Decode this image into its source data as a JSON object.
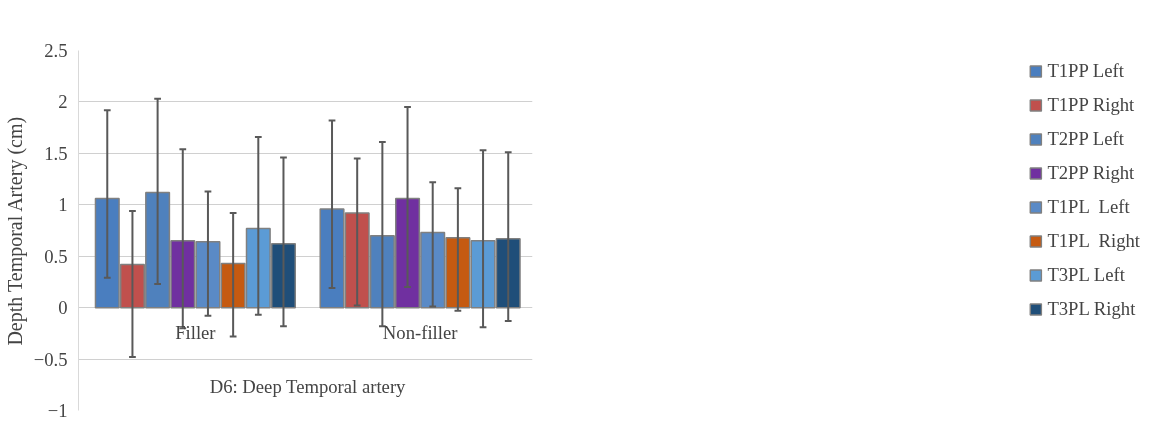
{
  "chart_data": {
    "type": "bar",
    "ylabel": "Depth Temporal Artery (cm)",
    "categories": [
      "Filler",
      "Non-filler"
    ],
    "ylim": [
      -1,
      2.5
    ],
    "yticks": [
      -1,
      -0.5,
      0,
      0.5,
      1,
      1.5,
      2,
      2.5
    ],
    "grid": "y",
    "legend": "right",
    "annotations": [
      "D6: Deep Temporal artery"
    ],
    "series": [
      {
        "name": "T1PP Left",
        "color": "#4a7ebf",
        "values": [
          1.06,
          0.96
        ],
        "errors": [
          [
            0.29,
            1.92
          ],
          [
            0.19,
            1.82
          ]
        ]
      },
      {
        "name": "T1PP Right",
        "color": "#c0504d",
        "values": [
          0.42,
          0.92
        ],
        "errors": [
          [
            -0.48,
            0.94
          ],
          [
            0.02,
            1.45
          ]
        ]
      },
      {
        "name": "T2PP Left",
        "color": "#4f81bd",
        "values": [
          1.12,
          0.7
        ],
        "errors": [
          [
            0.23,
            2.03
          ],
          [
            -0.18,
            1.61
          ]
        ]
      },
      {
        "name": "T2PP Right",
        "color": "#7030a0",
        "values": [
          0.65,
          1.06
        ],
        "errors": [
          [
            -0.2,
            1.54
          ],
          [
            0.2,
            1.95
          ]
        ]
      },
      {
        "name": "T1PL  Left",
        "color": "#5a8ac6",
        "values": [
          0.64,
          0.73
        ],
        "errors": [
          [
            -0.08,
            1.13
          ],
          [
            0.01,
            1.22
          ]
        ]
      },
      {
        "name": "T1PL  Right",
        "color": "#c55a11",
        "values": [
          0.43,
          0.68
        ],
        "errors": [
          [
            -0.28,
            0.92
          ],
          [
            -0.03,
            1.16
          ]
        ]
      },
      {
        "name": "T3PL Left",
        "color": "#5b9bd5",
        "values": [
          0.77,
          0.65
        ],
        "errors": [
          [
            -0.07,
            1.66
          ],
          [
            -0.19,
            1.53
          ]
        ]
      },
      {
        "name": "T3PL Right",
        "color": "#1f4e79",
        "values": [
          0.62,
          0.67
        ],
        "errors": [
          [
            -0.18,
            1.46
          ],
          [
            -0.13,
            1.51
          ]
        ]
      }
    ]
  }
}
